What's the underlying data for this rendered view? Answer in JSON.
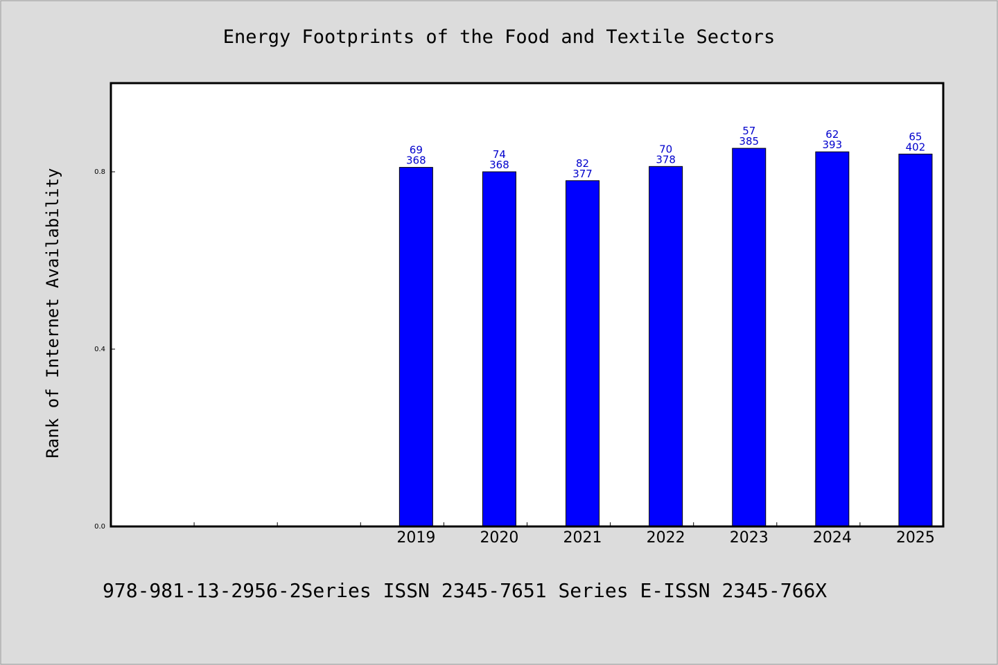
{
  "footer": "978-981-13-2956-2Series ISSN 2345-7651 Series E-ISSN 2345-766X",
  "colors": {
    "background": "#dcdcdc",
    "plot": "#ffffff",
    "bar": "#0000ff",
    "label": "#0000cc"
  },
  "chart_data": {
    "type": "bar",
    "title": "Energy Footprints of the Food and Textile Sectors",
    "xlabel": "",
    "ylabel": "Rank of Internet Availability",
    "categories": [
      "",
      "",
      "",
      "2019",
      "2020",
      "2021",
      "2022",
      "2023",
      "2024",
      "2025"
    ],
    "values": [
      null,
      null,
      null,
      0.81,
      0.8,
      0.78,
      0.812,
      0.853,
      0.845,
      0.84
    ],
    "annotations_top": [
      "",
      "",
      "",
      "69",
      "74",
      "82",
      "70",
      "57",
      "62",
      "65"
    ],
    "annotations_bottom": [
      "",
      "",
      "",
      "368",
      "368",
      "377",
      "378",
      "385",
      "393",
      "402"
    ],
    "ylim": [
      0,
      1.0
    ],
    "yticks": [
      0.0,
      0.4,
      0.8
    ],
    "ytick_labels": [
      "0.0",
      "0.4",
      "0.8"
    ],
    "grid": false,
    "legend": "none"
  }
}
